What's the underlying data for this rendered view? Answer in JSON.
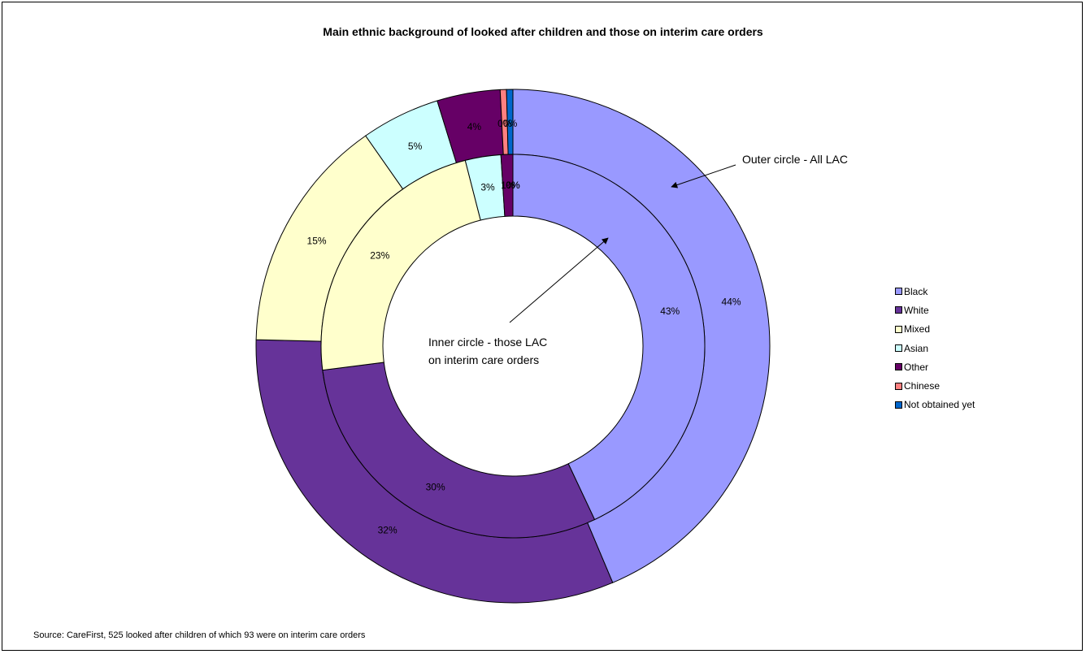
{
  "chart_data": {
    "type": "pie",
    "title": "Main ethnic background of looked after children and those on interim care orders",
    "source": "Source: CareFirst, 525 looked after children of which 93 were on interim care orders",
    "categories": [
      "Black",
      "White",
      "Mixed",
      "Asian",
      "Other",
      "Chinese",
      "Not obtained yet"
    ],
    "colors": [
      "#9999ff",
      "#663399",
      "#ffffcc",
      "#ccffff",
      "#660066",
      "#ff8080",
      "#0066cc"
    ],
    "series": [
      {
        "ring": "outer",
        "values": [
          44,
          32,
          15,
          5,
          4,
          0.4,
          0.4
        ],
        "labels": [
          "44%",
          "32%",
          "15%",
          "5%",
          "4%",
          "0%",
          "0%"
        ]
      },
      {
        "ring": "inner",
        "values": [
          43,
          30,
          23,
          3,
          1,
          0,
          0
        ],
        "labels": [
          "43%",
          "30%",
          "23%",
          "3%",
          "1%",
          "0%",
          "0%"
        ]
      }
    ],
    "annotations": [
      {
        "text": "Outer circle - All LAC"
      },
      {
        "text": "Inner circle - those LAC on interim care orders",
        "lines": [
          "Inner circle - those LAC",
          "on interim care orders"
        ]
      }
    ],
    "legend_position": "right"
  }
}
